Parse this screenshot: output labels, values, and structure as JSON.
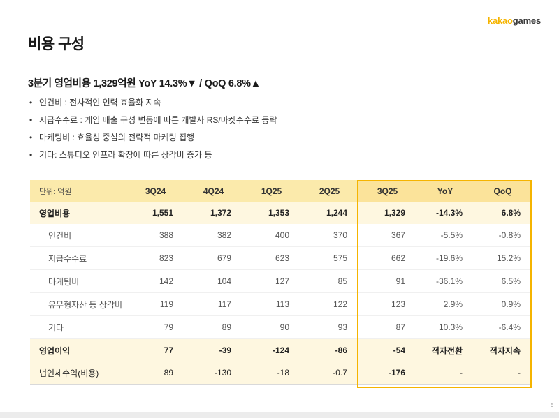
{
  "logo": {
    "part1": "kakao",
    "part2": "games"
  },
  "title": "비용 구성",
  "headline": "3분기 영업비용 1,329억원 YoY 14.3%▼ / QoQ 6.8%▲",
  "bullets": [
    "인건비 : 전사적인 인력 효율화 지속",
    "지급수수료 : 게임 매출 구성 변동에 따른 개발사 RS/마켓수수료 등락",
    "마케팅비 : 효율성 중심의 전략적 마케팅 집행",
    "기타: 스튜디오 인프라 확장에 따른 상각비 증가 등"
  ],
  "table": {
    "unit_label": "단위: 억원",
    "columns": [
      "3Q24",
      "4Q24",
      "1Q25",
      "2Q25",
      "3Q25",
      "YoY",
      "QoQ"
    ],
    "rows": [
      {
        "label": "영업비용",
        "values": [
          "1,551",
          "1,372",
          "1,353",
          "1,244",
          "1,329",
          "-14.3%",
          "6.8%"
        ]
      },
      {
        "label": "인건비",
        "values": [
          "388",
          "382",
          "400",
          "370",
          "367",
          "-5.5%",
          "-0.8%"
        ]
      },
      {
        "label": "지급수수료",
        "values": [
          "823",
          "679",
          "623",
          "575",
          "662",
          "-19.6%",
          "15.2%"
        ]
      },
      {
        "label": "마케팅비",
        "values": [
          "142",
          "104",
          "127",
          "85",
          "91",
          "-36.1%",
          "6.5%"
        ]
      },
      {
        "label": "유무형자산 등 상각비",
        "values": [
          "119",
          "117",
          "113",
          "122",
          "123",
          "2.9%",
          "0.9%"
        ]
      },
      {
        "label": "기타",
        "values": [
          "79",
          "89",
          "90",
          "93",
          "87",
          "10.3%",
          "-6.4%"
        ]
      },
      {
        "label": "영업이익",
        "values": [
          "77",
          "-39",
          "-124",
          "-86",
          "-54",
          "적자전환",
          "적자지속"
        ]
      },
      {
        "label": "법인세수익(비용)",
        "values": [
          "89",
          "-130",
          "-18",
          "-0.7",
          "-176",
          "-",
          "-"
        ]
      }
    ]
  },
  "page_number": "5"
}
